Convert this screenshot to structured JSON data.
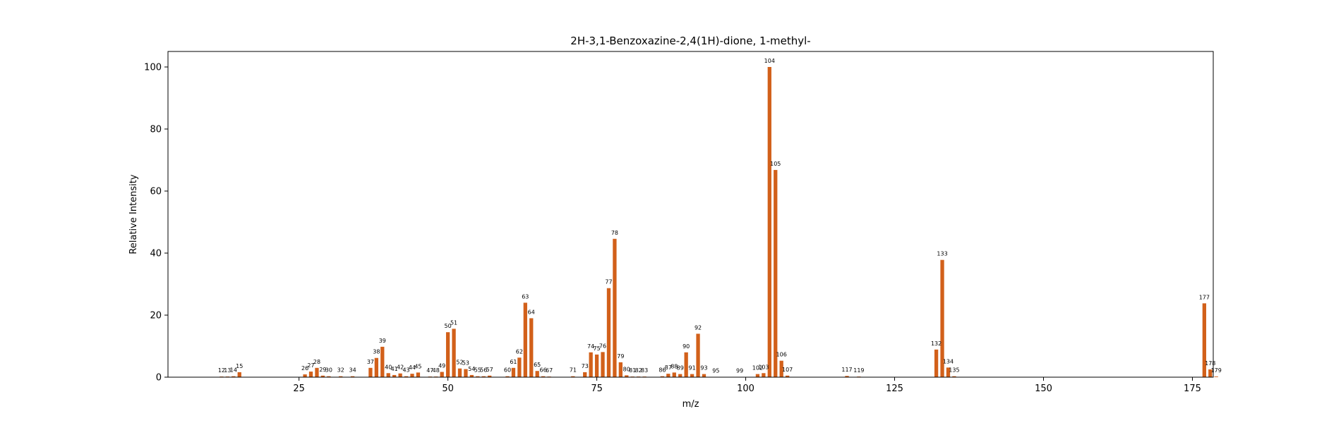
{
  "chart_data": {
    "type": "bar",
    "title": "2H-3,1-Benzoxazine-2,4(1H)-dione, 1-methyl-",
    "xlabel": "m/z",
    "ylabel": "Relative Intensity",
    "xlim": [
      3,
      178.5
    ],
    "ylim": [
      0,
      105
    ],
    "xticks": [
      25,
      50,
      75,
      100,
      125,
      150,
      175
    ],
    "yticks": [
      0,
      20,
      40,
      60,
      80,
      100
    ],
    "grid": false,
    "legend": "none",
    "bar_color": "#d2601a",
    "peaks": [
      {
        "mz": 12,
        "intensity": 0.2
      },
      {
        "mz": 13,
        "intensity": 0.2
      },
      {
        "mz": 14,
        "intensity": 0.3
      },
      {
        "mz": 15,
        "intensity": 1.6
      },
      {
        "mz": 26,
        "intensity": 0.9
      },
      {
        "mz": 27,
        "intensity": 1.8
      },
      {
        "mz": 28,
        "intensity": 3.0
      },
      {
        "mz": 29,
        "intensity": 0.5
      },
      {
        "mz": 30,
        "intensity": 0.3
      },
      {
        "mz": 32,
        "intensity": 0.3
      },
      {
        "mz": 34,
        "intensity": 0.3
      },
      {
        "mz": 37,
        "intensity": 3.0
      },
      {
        "mz": 38,
        "intensity": 6.2
      },
      {
        "mz": 39,
        "intensity": 9.8
      },
      {
        "mz": 40,
        "intensity": 1.3
      },
      {
        "mz": 41,
        "intensity": 0.7
      },
      {
        "mz": 42,
        "intensity": 1.2
      },
      {
        "mz": 43,
        "intensity": 0.3
      },
      {
        "mz": 44,
        "intensity": 1.1
      },
      {
        "mz": 45,
        "intensity": 1.5
      },
      {
        "mz": 47,
        "intensity": 0.2
      },
      {
        "mz": 48,
        "intensity": 0.2
      },
      {
        "mz": 49,
        "intensity": 1.7
      },
      {
        "mz": 50,
        "intensity": 14.5
      },
      {
        "mz": 51,
        "intensity": 15.6
      },
      {
        "mz": 52,
        "intensity": 2.8
      },
      {
        "mz": 53,
        "intensity": 2.6
      },
      {
        "mz": 54,
        "intensity": 0.7
      },
      {
        "mz": 55,
        "intensity": 0.3
      },
      {
        "mz": 56,
        "intensity": 0.3
      },
      {
        "mz": 57,
        "intensity": 0.5
      },
      {
        "mz": 60,
        "intensity": 0.3
      },
      {
        "mz": 61,
        "intensity": 3.0
      },
      {
        "mz": 62,
        "intensity": 6.3
      },
      {
        "mz": 63,
        "intensity": 24.0
      },
      {
        "mz": 64,
        "intensity": 19.0
      },
      {
        "mz": 65,
        "intensity": 2.0
      },
      {
        "mz": 66,
        "intensity": 0.3
      },
      {
        "mz": 67,
        "intensity": 0.2
      },
      {
        "mz": 71,
        "intensity": 0.3
      },
      {
        "mz": 73,
        "intensity": 1.6
      },
      {
        "mz": 74,
        "intensity": 8.0
      },
      {
        "mz": 75,
        "intensity": 7.3
      },
      {
        "mz": 76,
        "intensity": 8.1
      },
      {
        "mz": 77,
        "intensity": 28.7
      },
      {
        "mz": 78,
        "intensity": 44.6
      },
      {
        "mz": 79,
        "intensity": 4.8
      },
      {
        "mz": 80,
        "intensity": 0.6
      },
      {
        "mz": 81,
        "intensity": 0.2
      },
      {
        "mz": 82,
        "intensity": 0.2
      },
      {
        "mz": 83,
        "intensity": 0.2
      },
      {
        "mz": 86,
        "intensity": 0.3
      },
      {
        "mz": 87,
        "intensity": 1.1
      },
      {
        "mz": 88,
        "intensity": 1.5
      },
      {
        "mz": 89,
        "intensity": 1.0
      },
      {
        "mz": 90,
        "intensity": 8.0
      },
      {
        "mz": 91,
        "intensity": 1.0
      },
      {
        "mz": 92,
        "intensity": 14.0
      },
      {
        "mz": 93,
        "intensity": 1.0
      },
      {
        "mz": 95,
        "intensity": 0.1
      },
      {
        "mz": 99,
        "intensity": 0.1
      },
      {
        "mz": 102,
        "intensity": 1.0
      },
      {
        "mz": 103,
        "intensity": 1.3
      },
      {
        "mz": 104,
        "intensity": 100.0
      },
      {
        "mz": 105,
        "intensity": 66.8
      },
      {
        "mz": 106,
        "intensity": 5.3
      },
      {
        "mz": 107,
        "intensity": 0.5
      },
      {
        "mz": 117,
        "intensity": 0.4
      },
      {
        "mz": 119,
        "intensity": 0.2
      },
      {
        "mz": 132,
        "intensity": 8.9
      },
      {
        "mz": 133,
        "intensity": 37.8
      },
      {
        "mz": 134,
        "intensity": 3.1
      },
      {
        "mz": 135,
        "intensity": 0.3
      },
      {
        "mz": 177,
        "intensity": 23.8
      },
      {
        "mz": 178,
        "intensity": 2.5
      },
      {
        "mz": 179,
        "intensity": 0.2
      }
    ]
  }
}
